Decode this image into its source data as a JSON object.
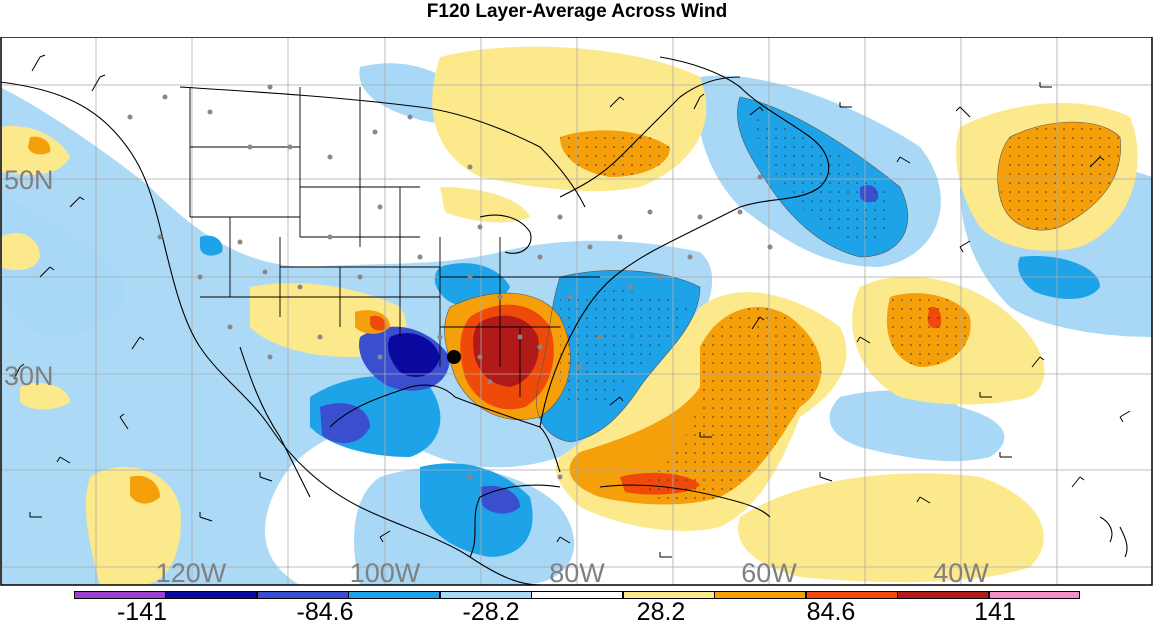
{
  "title": "F120 Layer-Average Across Wind",
  "map": {
    "lon_labels": [
      "120W",
      "100W",
      "80W",
      "60W",
      "40W"
    ],
    "lat_labels": [
      "50N",
      "30N"
    ],
    "feature_icon": "location-dot-icon"
  },
  "colorbar": {
    "labels": [
      "-141",
      "-84.6",
      "-28.2",
      "28.2",
      "84.6",
      "141"
    ],
    "colors": [
      "#9b3fcf",
      "#0a0aa0",
      "#3a4fd0",
      "#1fa3e8",
      "#a8d8f5",
      "#ffffff",
      "#fce98c",
      "#f5a00a",
      "#f04a0a",
      "#b01a18",
      "#f38fc3"
    ]
  }
}
